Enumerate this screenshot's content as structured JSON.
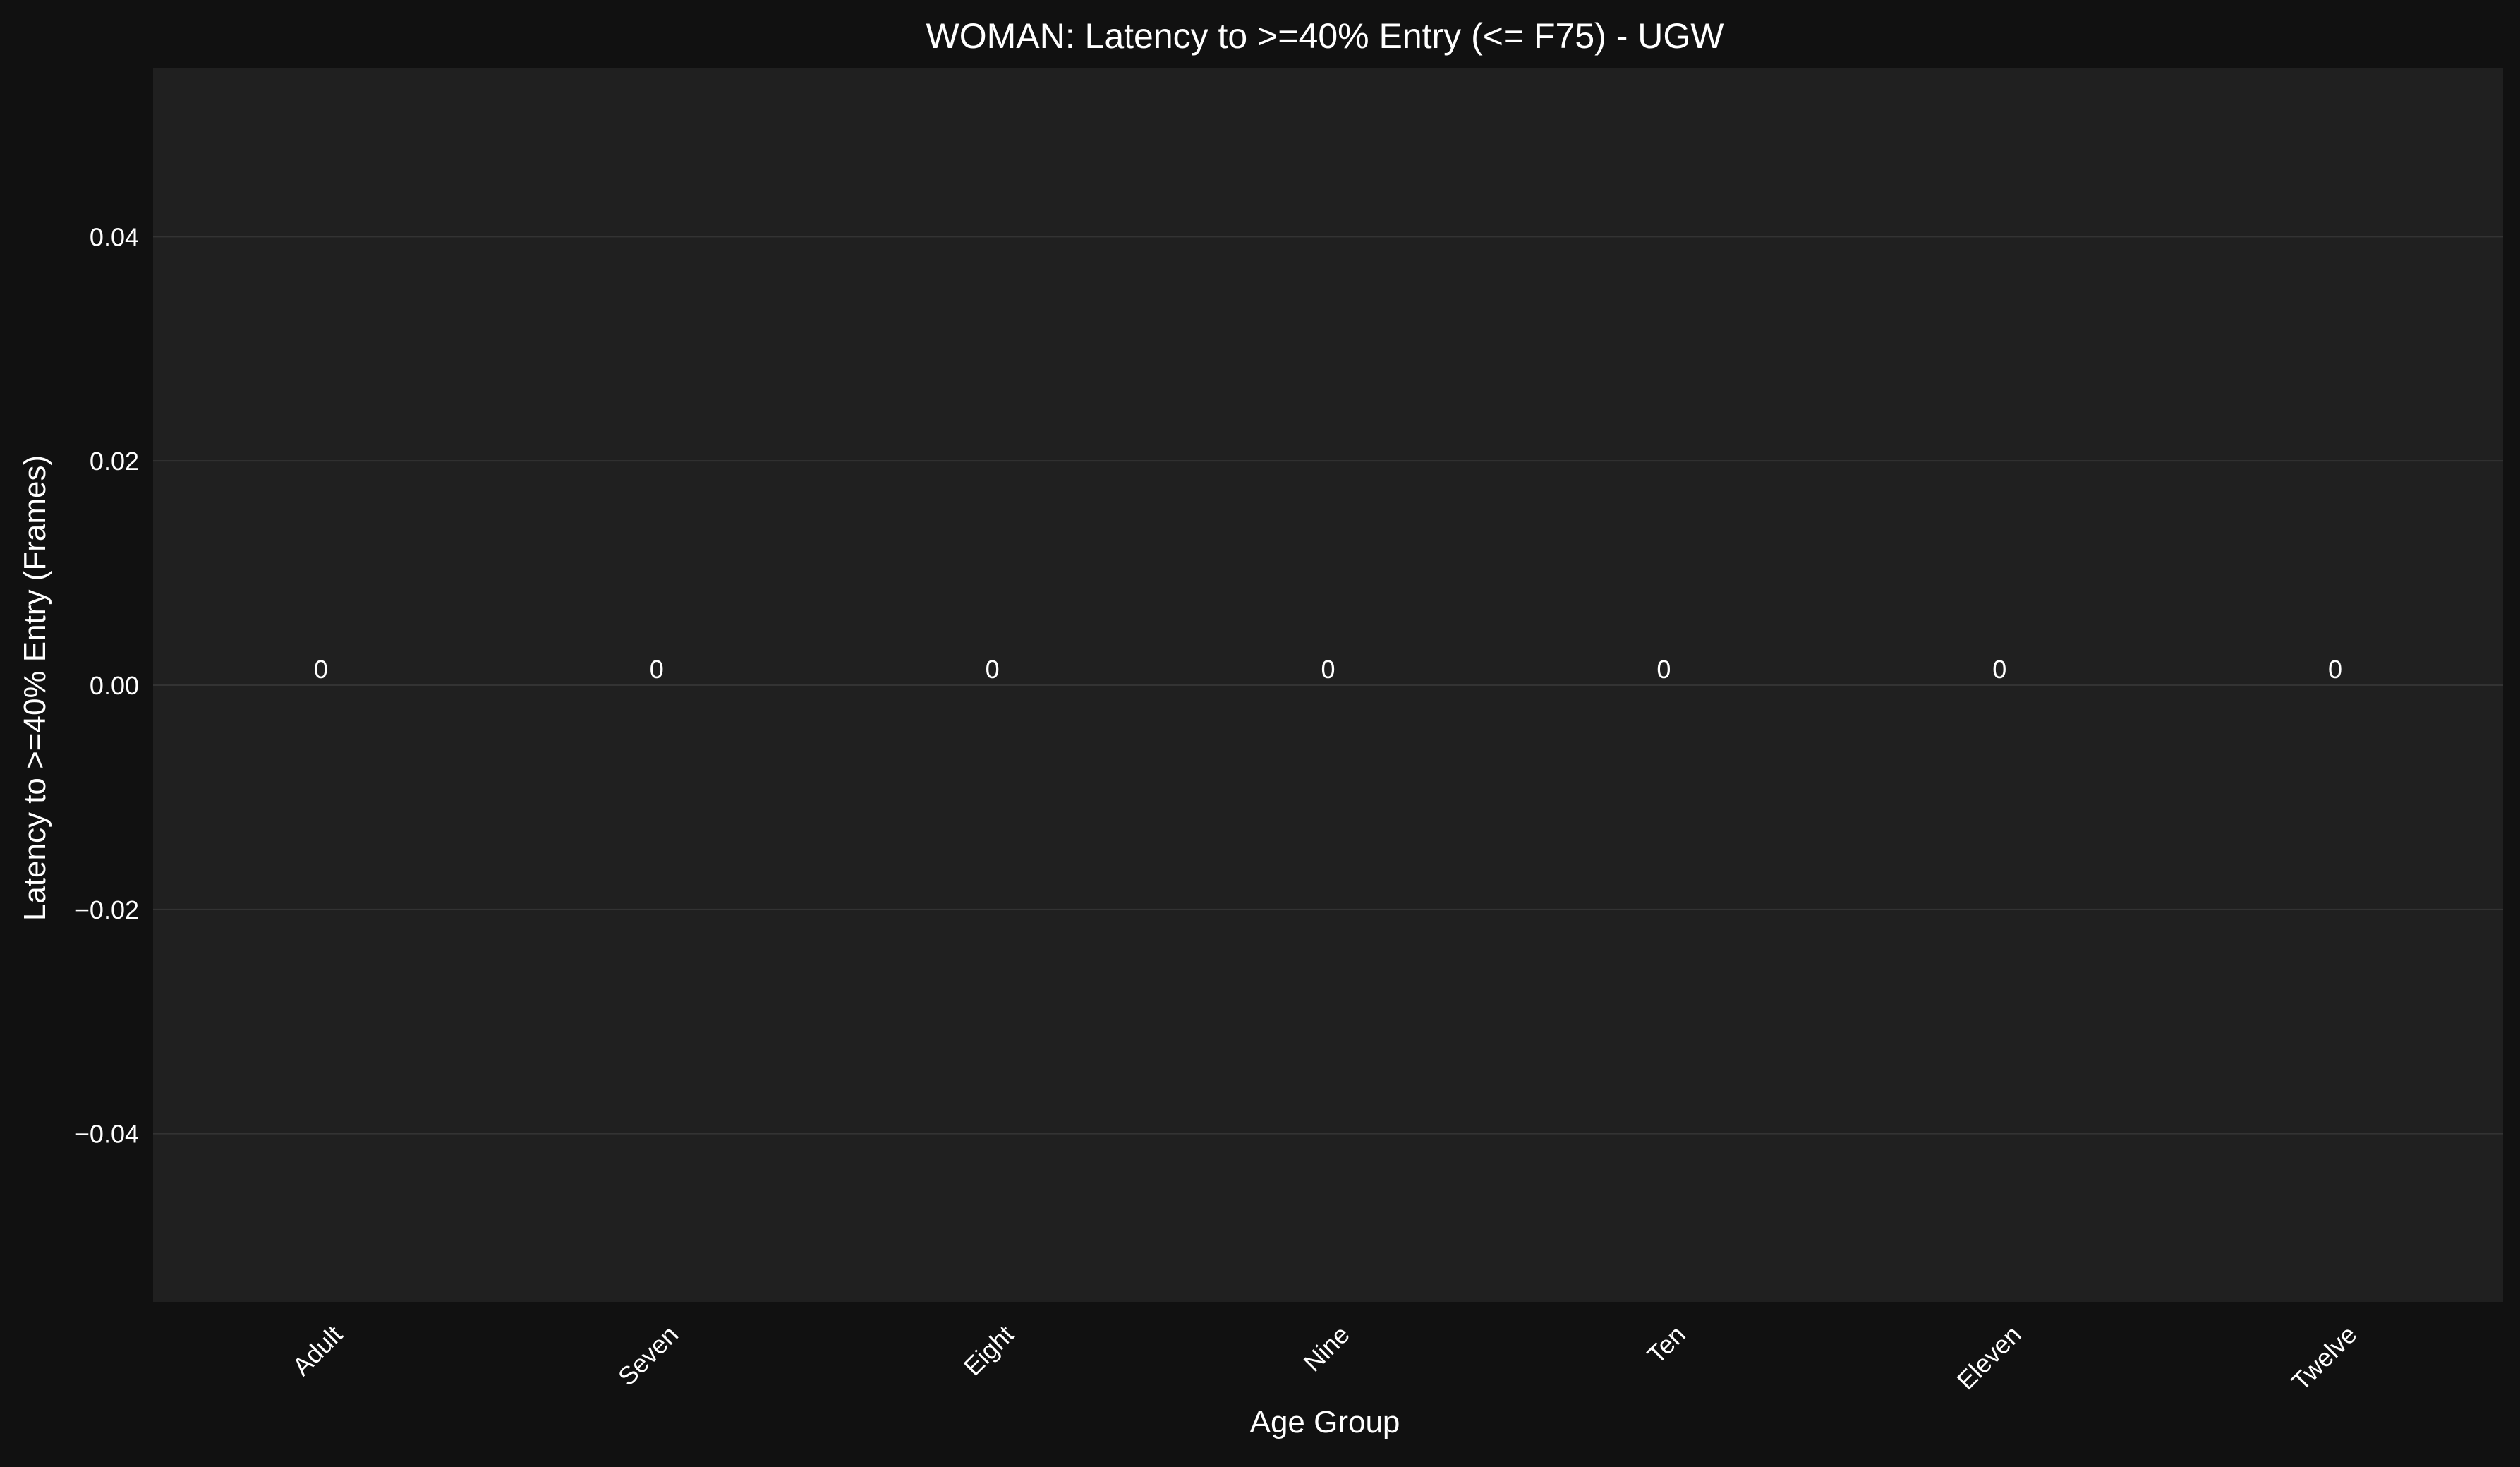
{
  "chart_data": {
    "type": "bar",
    "title": "WOMAN: Latency to >=40% Entry (<= F75) - UGW",
    "xlabel": "Age Group",
    "ylabel": "Latency to >=40% Entry (Frames)",
    "categories": [
      "Adult",
      "Seven",
      "Eight",
      "Nine",
      "Ten",
      "Eleven",
      "Twelve"
    ],
    "values": [
      0,
      0,
      0,
      0,
      0,
      0,
      0
    ],
    "data_labels": [
      "0",
      "0",
      "0",
      "0",
      "0",
      "0",
      "0"
    ],
    "ylim": [
      -0.055,
      0.055
    ],
    "yticks": [
      -0.04,
      -0.02,
      0.0,
      0.02,
      0.04
    ],
    "ytick_labels": [
      "−0.04",
      "−0.02",
      "0.00",
      "0.02",
      "0.04"
    ],
    "grid": true,
    "legend": "none",
    "colors": {
      "figure_background": "#111111",
      "plot_background": "#202020",
      "grid": "#333333",
      "text": "#ffffff",
      "bar": "#4c9be8"
    }
  }
}
